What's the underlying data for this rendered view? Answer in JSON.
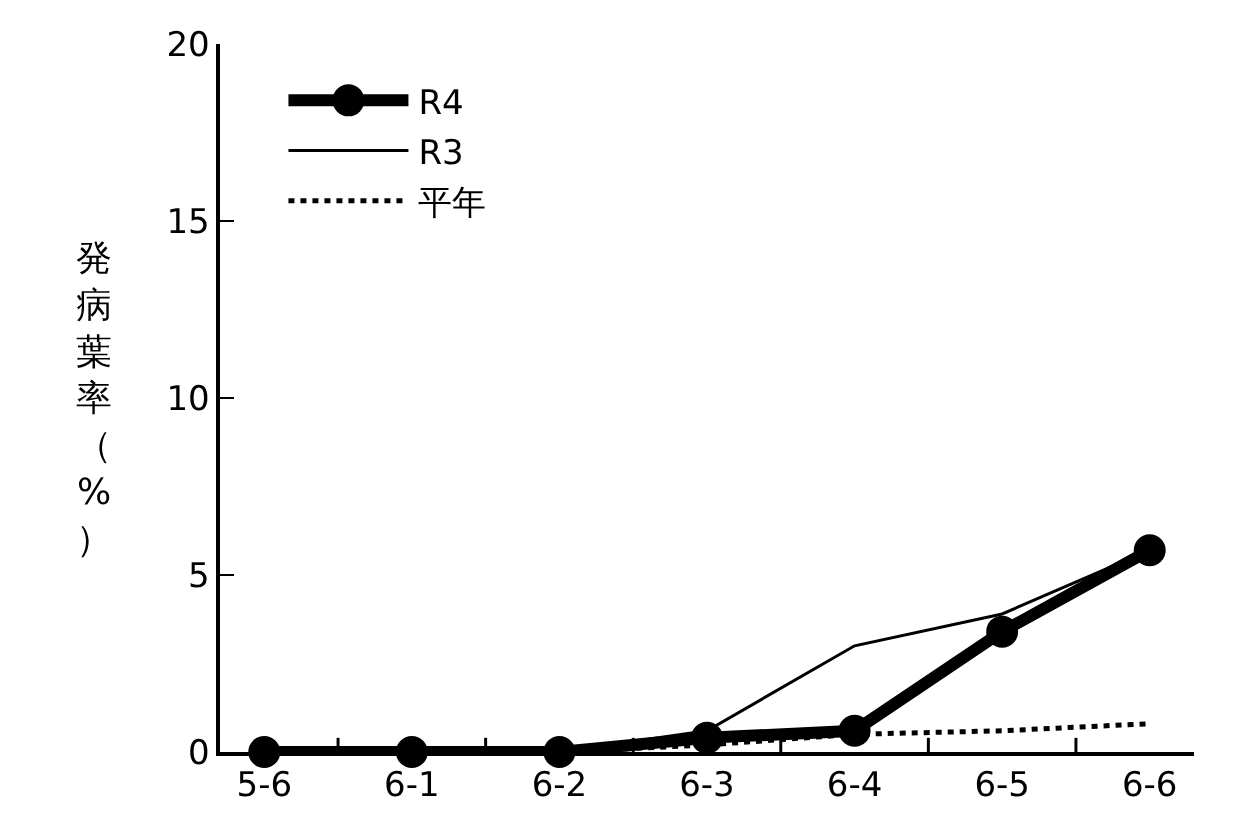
{
  "chart_data": {
    "type": "line",
    "ylabel": "発病葉率（%）",
    "categories": [
      "5-6",
      "6-1",
      "6-2",
      "6-3",
      "6-4",
      "6-5",
      "6-6"
    ],
    "series": [
      {
        "name": "R4",
        "color": "#000000",
        "values": [
          0,
          0,
          0,
          0.4,
          0.6,
          3.4,
          5.7
        ],
        "marker": "circle",
        "line_style": "solid"
      },
      {
        "name": "R3",
        "color": "#000000",
        "values": [
          0,
          0,
          0,
          0.6,
          3.0,
          3.9,
          5.7
        ],
        "marker": "none",
        "line_style": "solid"
      },
      {
        "name": "平年",
        "color": "#000000",
        "values": [
          0,
          0,
          0,
          0.2,
          0.5,
          0.6,
          0.8
        ],
        "marker": "none",
        "line_style": "dotted"
      }
    ],
    "ylim": [
      0,
      20
    ],
    "yticks": [
      0,
      5,
      10,
      15,
      20
    ],
    "legend": "top left"
  }
}
